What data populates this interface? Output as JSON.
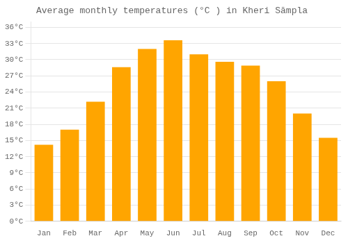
{
  "chart_data": {
    "type": "bar",
    "title": "Average monthly temperatures (°C ) in Kheri Sāmpla",
    "categories": [
      "Jan",
      "Feb",
      "Mar",
      "Apr",
      "May",
      "Jun",
      "Jul",
      "Aug",
      "Sep",
      "Oct",
      "Nov",
      "Dec"
    ],
    "values": [
      14.2,
      17.0,
      22.2,
      28.6,
      32.0,
      33.6,
      31.0,
      29.6,
      28.9,
      26.0,
      20.0,
      15.5
    ],
    "color": "#FFA500",
    "ylim": [
      0,
      37
    ],
    "yticks": [
      {
        "value": 0,
        "label": "0°C"
      },
      {
        "value": 3,
        "label": "3°C"
      },
      {
        "value": 6,
        "label": "6°C"
      },
      {
        "value": 9,
        "label": "9°C"
      },
      {
        "value": 12,
        "label": "12°C"
      },
      {
        "value": 15,
        "label": "15°C"
      },
      {
        "value": 18,
        "label": "18°C"
      },
      {
        "value": 21,
        "label": "21°C"
      },
      {
        "value": 24,
        "label": "24°C"
      },
      {
        "value": 27,
        "label": "27°C"
      },
      {
        "value": 30,
        "label": "30°C"
      },
      {
        "value": 33,
        "label": "33°C"
      },
      {
        "value": 36,
        "label": "36°C"
      }
    ],
    "grid": true
  }
}
